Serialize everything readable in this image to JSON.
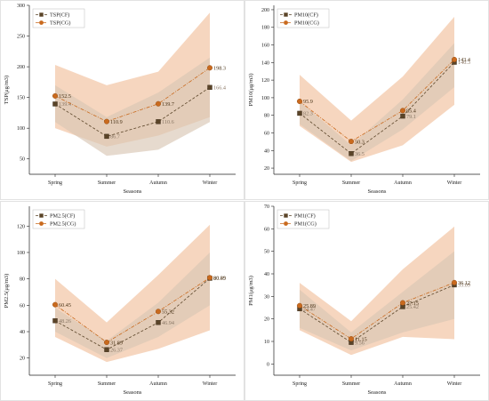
{
  "colors": {
    "cf": "#5a4428",
    "cg": "#c96a1e",
    "cf_band_light": "#d8c6b4",
    "cg_band_light": "#f3c8a9",
    "band_dark": "#b59479",
    "cf_label": "#8a7765",
    "cg_label": "#4a3418"
  },
  "chart_data": [
    {
      "type": "line",
      "categories": [
        "Spring",
        "Summer",
        "Autumn",
        "Winter"
      ],
      "xlabel": "Seasons",
      "ylabel": "TSP(μg/m3)",
      "ylim": [
        25,
        300
      ],
      "yticks": [
        50,
        100,
        150,
        200,
        250,
        300
      ],
      "legend": "top-left",
      "series": [
        {
          "name": "TSP(CF)",
          "key": "cf",
          "values": [
            139.4,
            86.7,
            110.6,
            166.4
          ],
          "labels": [
            "139.4",
            "86.7",
            "110.6",
            "166.4"
          ],
          "band": [
            [
              110,
              170
            ],
            [
              55,
              118
            ],
            [
              65,
              158
            ],
            [
              110,
              215
            ]
          ]
        },
        {
          "name": "TSP(CG)",
          "key": "cg",
          "values": [
            152.5,
            110.9,
            139.7,
            198.3
          ],
          "labels": [
            "152.5",
            "110.9",
            "139.7",
            "198.3"
          ],
          "band": [
            [
              100,
              203
            ],
            [
              70,
              170
            ],
            [
              88,
              192
            ],
            [
              118,
              288
            ]
          ]
        }
      ]
    },
    {
      "type": "line",
      "categories": [
        "Spring",
        "Summer",
        "Autumn",
        "Winter"
      ],
      "xlabel": "Seasons",
      "ylabel": "PM10(μg/m3)",
      "ylim": [
        13,
        205
      ],
      "yticks": [
        20,
        40,
        60,
        80,
        100,
        120,
        140,
        160,
        180,
        200
      ],
      "legend": "top-left",
      "series": [
        {
          "name": "PM10(CF)",
          "key": "cf",
          "values": [
            82.3,
            36.5,
            79.1,
            140.3
          ],
          "labels": [
            "82.3",
            "36.5",
            "79.1",
            "140.3"
          ],
          "band": [
            [
              70,
              96
            ],
            [
              28,
              46
            ],
            [
              64,
              98
            ],
            [
              112,
              162
            ]
          ]
        },
        {
          "name": "PM10(CG)",
          "key": "cg",
          "values": [
            95.9,
            50.3,
            85.4,
            143.4
          ],
          "labels": [
            "95.9",
            "50.3",
            "85.4",
            "143.4"
          ],
          "band": [
            [
              68,
              126
            ],
            [
              27,
              74
            ],
            [
              46,
              124
            ],
            [
              92,
              192
            ]
          ]
        }
      ]
    },
    {
      "type": "line",
      "categories": [
        "Spring",
        "Summer",
        "Autumn",
        "Winter"
      ],
      "xlabel": "Seasons",
      "ylabel": "PM2.5(μg/m3)",
      "ylim": [
        7,
        135
      ],
      "yticks": [
        20,
        40,
        60,
        80,
        100,
        120
      ],
      "legend": "top-left",
      "series": [
        {
          "name": "PM2.5(CF)",
          "key": "cf",
          "values": [
            48.26,
            26.37,
            46.94,
            80.45
          ],
          "labels": [
            "48.26",
            "26.37",
            "46.94",
            "80.45"
          ],
          "band": [
            [
              40,
              58
            ],
            [
              20,
              33
            ],
            [
              36,
              62
            ],
            [
              60,
              100
            ]
          ]
        },
        {
          "name": "PM2.5(CG)",
          "key": "cg",
          "values": [
            60.45,
            31.89,
            55.32,
            80.89
          ],
          "labels": [
            "60.45",
            "31.89",
            "55.32",
            "80.89"
          ],
          "band": [
            [
              36,
              80
            ],
            [
              17,
              47
            ],
            [
              27,
              83
            ],
            [
              41,
              121
            ]
          ]
        }
      ]
    },
    {
      "type": "line",
      "categories": [
        "Spring",
        "Summer",
        "Autumn",
        "Winter"
      ],
      "xlabel": "Seasons",
      "ylabel": "PM1(μg/m3)",
      "ylim": [
        -5,
        70
      ],
      "yticks": [
        0,
        10,
        20,
        30,
        40,
        50,
        60,
        70
      ],
      "legend": "top-left",
      "series": [
        {
          "name": "PM1(CF)",
          "key": "cf",
          "values": [
            24.47,
            9.56,
            25.42,
            35.09
          ],
          "labels": [
            "24.47",
            "9.56",
            "25.42",
            "35.09"
          ],
          "band": [
            [
              16,
              33
            ],
            [
              6,
              14
            ],
            [
              14,
              32
            ],
            [
              20,
              50
            ]
          ]
        },
        {
          "name": "PM1(CG)",
          "key": "cg",
          "values": [
            25.89,
            11.15,
            27.15,
            36.12
          ],
          "labels": [
            "25.89",
            "11.15",
            "27.15",
            "36.12"
          ],
          "band": [
            [
              15,
              36
            ],
            [
              4,
              19
            ],
            [
              12,
              42
            ],
            [
              11,
              61
            ]
          ]
        }
      ]
    }
  ]
}
